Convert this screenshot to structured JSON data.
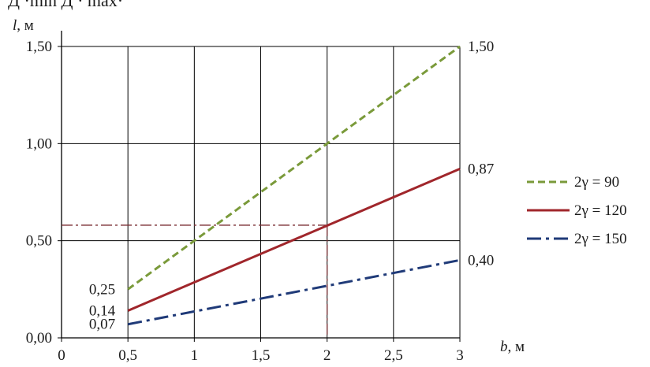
{
  "page": {
    "header_fragment": "Д  ·min Д  · max·"
  },
  "colors": {
    "s90": "#7a9a3a",
    "s120": "#a0262b",
    "s150": "#1f3a78",
    "axis": "#000000",
    "grid": "#000000",
    "guide": "#7a2e33"
  },
  "chart_data": {
    "type": "line",
    "title": "",
    "xlabel": "b, м",
    "ylabel": "l, м",
    "xlim": [
      0,
      3
    ],
    "ylim": [
      0,
      1.5
    ],
    "x_ticks": [
      0,
      0.5,
      1,
      1.5,
      2,
      2.5,
      3
    ],
    "x_tick_labels": [
      "0",
      "0,5",
      "1",
      "1,5",
      "2",
      "2,5",
      "3"
    ],
    "y_ticks": [
      0,
      0.5,
      1,
      1.5
    ],
    "y_tick_labels": [
      "0,00",
      "0,50",
      "1,00",
      "1,50"
    ],
    "grid": true,
    "legend_position": "right",
    "series": [
      {
        "name": "2γ = 90",
        "x": [
          0.5,
          3
        ],
        "y": [
          0.25,
          1.5
        ],
        "style": "dashed",
        "color_key": "s90"
      },
      {
        "name": "2γ = 120",
        "x": [
          0.5,
          3
        ],
        "y": [
          0.14,
          0.87
        ],
        "style": "solid",
        "color_key": "s120"
      },
      {
        "name": "2γ = 150",
        "x": [
          0.5,
          3
        ],
        "y": [
          0.07,
          0.4
        ],
        "style": "dashdot",
        "color_key": "s150"
      }
    ],
    "guide_lines": {
      "x": 2,
      "y": 0.58
    },
    "annotations": [
      {
        "text": "1,50",
        "x": 3,
        "y": 1.5,
        "side": "right"
      },
      {
        "text": "0,87",
        "x": 3,
        "y": 0.87,
        "side": "right"
      },
      {
        "text": "0,40",
        "x": 3,
        "y": 0.4,
        "side": "right"
      },
      {
        "text": "0,25",
        "x": 0.5,
        "y": 0.25,
        "side": "left"
      },
      {
        "text": "0,14",
        "x": 0.5,
        "y": 0.14,
        "side": "left"
      },
      {
        "text": "0,07",
        "x": 0.5,
        "y": 0.07,
        "side": "left"
      }
    ]
  }
}
